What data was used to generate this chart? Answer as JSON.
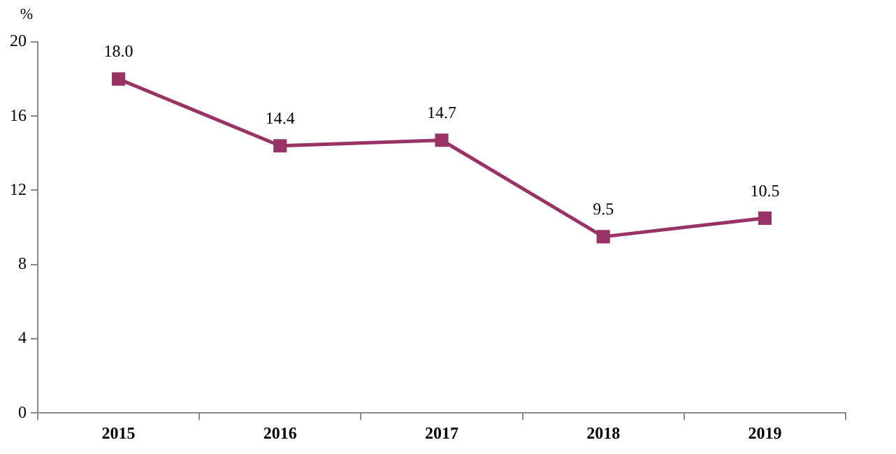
{
  "chart_data": {
    "type": "line",
    "ylabel": "%",
    "categories": [
      "2015",
      "2016",
      "2017",
      "2018",
      "2019"
    ],
    "series": [
      {
        "color": "#993366",
        "values": [
          18.0,
          14.4,
          14.7,
          9.5,
          10.5
        ],
        "value_labels": [
          "18.0",
          "14.4",
          "14.7",
          "9.5",
          "10.5"
        ]
      }
    ],
    "ylim": [
      0,
      20
    ],
    "yticks": [
      0,
      4,
      8,
      12,
      16,
      20
    ],
    "grid": false,
    "legend": false,
    "marker": "square",
    "line_style": "solid"
  }
}
